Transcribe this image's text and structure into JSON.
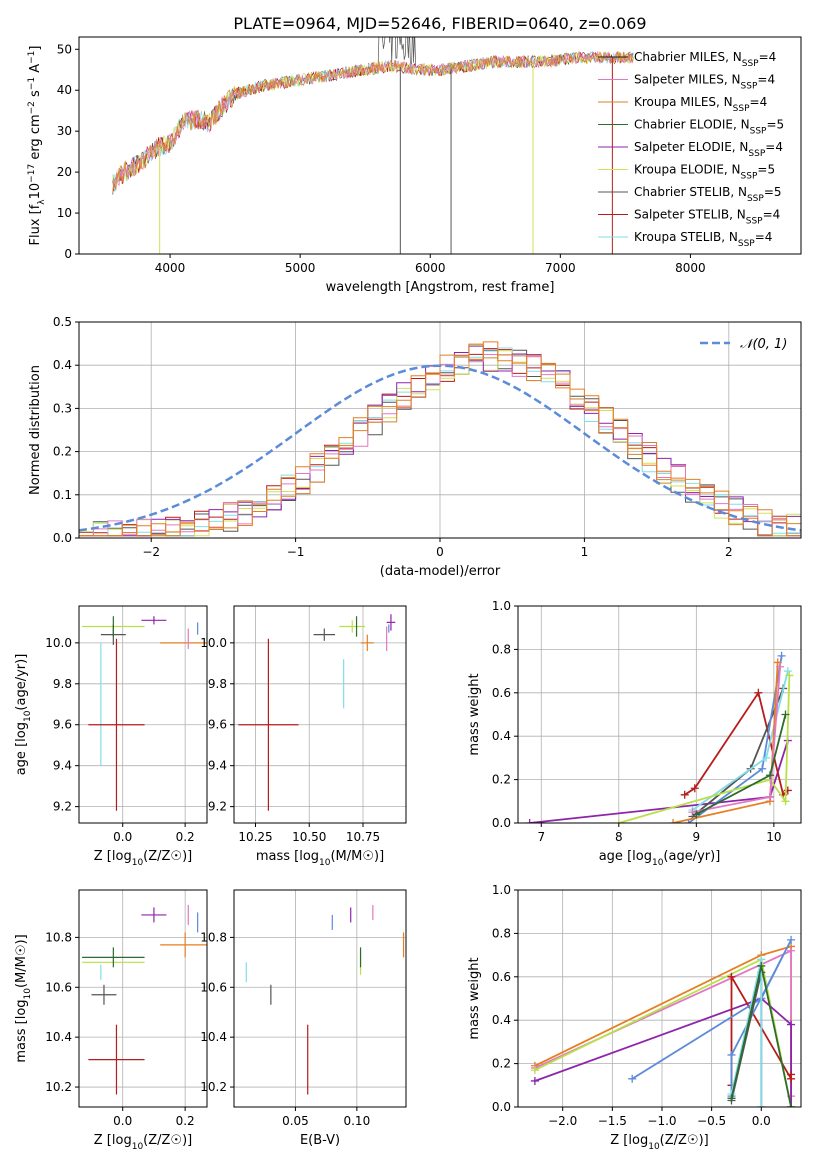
{
  "title": "PLATE=0964, MJD=52646, FIBERID=0640, z=0.069",
  "colors": {
    "chabrier_miles": "#1f1f1f",
    "salpeter_miles": "#e377c2",
    "kroupa_miles": "#d9822b",
    "chabrier_elodie": "#2f6b2f",
    "salpeter_elodie": "#8e24aa",
    "kroupa_elodie": "#d4e157",
    "chabrier_stelib": "#555555",
    "salpeter_stelib": "#b71c1c",
    "kroupa_stelib": "#80deea",
    "normal_curve": "#5b8bd9",
    "extra_blue": "#5b8bd9",
    "extra_orange": "#e67e22",
    "extra_lime": "#b8e04a"
  },
  "chart_data": [
    {
      "id": "spectrum",
      "type": "line",
      "xlabel": "wavelength [Angstrom, rest frame]",
      "ylabel": "Flux [f_λ10^-17 erg cm^-2 s^-1 A^-1]",
      "xlim": [
        3300,
        8850
      ],
      "ylim": [
        0,
        53
      ],
      "xticks": [
        "4000",
        "5000",
        "6000",
        "7000",
        "8000"
      ],
      "yticks": [
        "0",
        "10",
        "20",
        "30",
        "40",
        "50"
      ],
      "grid": false,
      "legend_position": "top-right",
      "legend": [
        {
          "name": "Chabrier MILES",
          "nssp": "4"
        },
        {
          "name": "Salpeter MILES",
          "nssp": "4"
        },
        {
          "name": "Kroupa MILES",
          "nssp": "4"
        },
        {
          "name": "Chabrier ELODIE",
          "nssp": "5"
        },
        {
          "name": "Salpeter ELODIE",
          "nssp": "4"
        },
        {
          "name": "Kroupa ELODIE",
          "nssp": "5"
        },
        {
          "name": "Chabrier STELIB",
          "nssp": "5"
        },
        {
          "name": "Salpeter STELIB",
          "nssp": "4"
        },
        {
          "name": "Kroupa STELIB",
          "nssp": "4"
        }
      ],
      "continuum_x": [
        3560,
        3650,
        3800,
        3900,
        4000,
        4100,
        4200,
        4300,
        4400,
        4500,
        4700,
        4900,
        5100,
        5300,
        5500,
        5700,
        5900,
        6100,
        6300,
        6500,
        6700,
        6900,
        7100,
        7300,
        7500
      ],
      "continuum_y": [
        17,
        20,
        23,
        26,
        27,
        32,
        33,
        32,
        36,
        39,
        41,
        42,
        43,
        44,
        45,
        46,
        45,
        45,
        46,
        47,
        47,
        47,
        48,
        48,
        48
      ],
      "drop_lines_x": [
        3920,
        5770,
        6160,
        6790,
        7400
      ]
    },
    {
      "id": "residuals",
      "type": "histogram",
      "xlabel": "(data-model)/error",
      "ylabel": "Normed distribution",
      "xlim": [
        -2.5,
        2.5
      ],
      "ylim": [
        0,
        0.5
      ],
      "xticks": [
        "−2",
        "−1",
        "0",
        "1",
        "2"
      ],
      "yticks": [
        "0.0",
        "0.1",
        "0.2",
        "0.3",
        "0.4",
        "0.5"
      ],
      "grid": true,
      "legend_position": "top-right",
      "normal_label": "𝒩(0, 1)",
      "bin_width": 0.1
    },
    {
      "id": "age_vs_Z",
      "type": "scatter",
      "xlabel": "Z [log10(Z/Z☉)]",
      "ylabel": "age  [log10(age/yr)]",
      "xlim": [
        -0.14,
        0.27
      ],
      "ylim": [
        9.12,
        10.18
      ],
      "xticks": [
        "0.0",
        "0.2"
      ],
      "yticks": [
        "9.2",
        "9.4",
        "9.6",
        "9.8",
        "10.0"
      ],
      "grid": true,
      "points": [
        {
          "x": -0.07,
          "y": 9.7,
          "xerr": 0.0,
          "yerr": 0.3,
          "c": "kroupa_stelib"
        },
        {
          "x": -0.03,
          "y": 10.08,
          "xerr": 0.1,
          "yerr": 0.0,
          "c": "extra_lime"
        },
        {
          "x": -0.03,
          "y": 10.04,
          "xerr": 0.04,
          "yerr": 0.05,
          "c": "chabrier_stelib"
        },
        {
          "x": -0.03,
          "y": 10.08,
          "xerr": 0.0,
          "yerr": 0.05,
          "c": "chabrier_elodie"
        },
        {
          "x": -0.02,
          "y": 9.6,
          "xerr": 0.09,
          "yerr": 0.42,
          "c": "salpeter_stelib"
        },
        {
          "x": 0.1,
          "y": 10.11,
          "xerr": 0.04,
          "yerr": 0.02,
          "c": "salpeter_elodie"
        },
        {
          "x": 0.2,
          "y": 10.0,
          "xerr": 0.08,
          "yerr": 0.0,
          "c": "extra_orange"
        },
        {
          "x": 0.21,
          "y": 10.02,
          "xerr": 0.0,
          "yerr": 0.05,
          "c": "salpeter_miles"
        },
        {
          "x": 0.24,
          "y": 10.07,
          "xerr": 0.0,
          "yerr": 0.03,
          "c": "extra_blue"
        }
      ]
    },
    {
      "id": "age_vs_mass",
      "type": "scatter",
      "xlabel": "mass [log10(M/M☉)]",
      "ylabel": "",
      "xlim": [
        10.15,
        10.95
      ],
      "ylim": [
        9.12,
        10.18
      ],
      "xticks": [
        "10.25",
        "10.50",
        "10.75"
      ],
      "yticks": [
        "9.2",
        "9.4",
        "9.6",
        "9.8",
        "10.0"
      ],
      "grid": true,
      "points": [
        {
          "x": 10.31,
          "y": 9.6,
          "xerr": 0.14,
          "yerr": 0.42,
          "c": "salpeter_stelib"
        },
        {
          "x": 10.57,
          "y": 10.04,
          "xerr": 0.05,
          "yerr": 0.03,
          "c": "chabrier_stelib"
        },
        {
          "x": 10.66,
          "y": 9.8,
          "xerr": 0.0,
          "yerr": 0.12,
          "c": "kroupa_stelib"
        },
        {
          "x": 10.7,
          "y": 10.08,
          "xerr": 0.06,
          "yerr": 0.03,
          "c": "extra_lime"
        },
        {
          "x": 10.72,
          "y": 10.08,
          "xerr": 0.0,
          "yerr": 0.05,
          "c": "chabrier_elodie"
        },
        {
          "x": 10.77,
          "y": 10.0,
          "xerr": 0.03,
          "yerr": 0.04,
          "c": "extra_orange"
        },
        {
          "x": 10.86,
          "y": 10.02,
          "xerr": 0.0,
          "yerr": 0.06,
          "c": "salpeter_miles"
        },
        {
          "x": 10.88,
          "y": 10.1,
          "xerr": 0.02,
          "yerr": 0.04,
          "c": "salpeter_elodie"
        },
        {
          "x": 10.87,
          "y": 10.07,
          "xerr": 0.0,
          "yerr": 0.02,
          "c": "extra_blue"
        }
      ]
    },
    {
      "id": "weight_vs_age",
      "type": "line",
      "xlabel": "age  [log10(age/yr)]",
      "ylabel": "mass weight",
      "xlim": [
        6.7,
        10.35
      ],
      "ylim": [
        0,
        1
      ],
      "xticks": [
        "7",
        "8",
        "9",
        "10"
      ],
      "yticks": [
        "0.0",
        "0.2",
        "0.4",
        "0.6",
        "0.8",
        "1.0"
      ],
      "grid": true,
      "series": [
        {
          "c": "salpeter_elodie",
          "x": [
            6.85,
            9.95,
            10.18
          ],
          "y": [
            0.0,
            0.12,
            0.38
          ]
        },
        {
          "c": "salpeter_stelib",
          "x": [
            8.85,
            8.98,
            9.8,
            10.12,
            10.18
          ],
          "y": [
            0.13,
            0.16,
            0.6,
            0.13,
            0.15
          ]
        },
        {
          "c": "chabrier_stelib",
          "x": [
            8.95,
            9.7,
            10.12
          ],
          "y": [
            0.03,
            0.25,
            0.62
          ]
        },
        {
          "c": "extra_blue",
          "x": [
            8.9,
            9.85,
            10.1
          ],
          "y": [
            0.0,
            0.25,
            0.77
          ]
        },
        {
          "c": "kroupa_stelib",
          "x": [
            8.95,
            9.9,
            10.18
          ],
          "y": [
            0.06,
            0.3,
            0.7
          ]
        },
        {
          "c": "extra_orange",
          "x": [
            8.7,
            9.95,
            10.05
          ],
          "y": [
            0.0,
            0.1,
            0.74
          ]
        },
        {
          "c": "extra_lime",
          "x": [
            8.0,
            9.95,
            10.15,
            10.2
          ],
          "y": [
            0.0,
            0.2,
            0.1,
            0.68
          ]
        },
        {
          "c": "salpeter_miles",
          "x": [
            8.95,
            9.95,
            10.08
          ],
          "y": [
            0.05,
            0.12,
            0.72
          ]
        },
        {
          "c": "chabrier_elodie",
          "x": [
            9.0,
            9.95,
            10.15
          ],
          "y": [
            0.04,
            0.22,
            0.5
          ]
        }
      ]
    },
    {
      "id": "mass_vs_Z",
      "type": "scatter",
      "xlabel": "Z [log10(Z/Z☉)]",
      "ylabel": "mass [log10(M/M☉)]",
      "xlim": [
        -0.14,
        0.27
      ],
      "ylim": [
        10.12,
        10.99
      ],
      "xticks": [
        "0.0",
        "0.2"
      ],
      "yticks": [
        "10.2",
        "10.4",
        "10.6",
        "10.8"
      ],
      "grid": true,
      "points": [
        {
          "x": -0.02,
          "y": 10.31,
          "xerr": 0.09,
          "yerr": 0.14,
          "c": "salpeter_stelib"
        },
        {
          "x": -0.06,
          "y": 10.57,
          "xerr": 0.04,
          "yerr": 0.04,
          "c": "chabrier_stelib"
        },
        {
          "x": -0.07,
          "y": 10.66,
          "xerr": 0.0,
          "yerr": 0.03,
          "c": "kroupa_stelib"
        },
        {
          "x": -0.03,
          "y": 10.7,
          "xerr": 0.1,
          "yerr": 0.0,
          "c": "extra_lime"
        },
        {
          "x": -0.03,
          "y": 10.72,
          "xerr": 0.1,
          "yerr": 0.04,
          "c": "chabrier_elodie"
        },
        {
          "x": 0.1,
          "y": 10.89,
          "xerr": 0.04,
          "yerr": 0.03,
          "c": "salpeter_elodie"
        },
        {
          "x": 0.2,
          "y": 10.77,
          "xerr": 0.08,
          "yerr": 0.05,
          "c": "extra_orange"
        },
        {
          "x": 0.21,
          "y": 10.89,
          "xerr": 0.0,
          "yerr": 0.04,
          "c": "salpeter_miles"
        },
        {
          "x": 0.24,
          "y": 10.86,
          "xerr": 0.0,
          "yerr": 0.04,
          "c": "extra_blue"
        }
      ]
    },
    {
      "id": "mass_vs_ebv",
      "type": "scatter",
      "xlabel": "E(B-V)",
      "ylabel": "",
      "xlim": [
        0.0,
        0.14
      ],
      "ylim": [
        10.12,
        10.99
      ],
      "xticks": [
        "0.05",
        "0.10"
      ],
      "yticks": [
        "10.2",
        "10.4",
        "10.6",
        "10.8"
      ],
      "grid": true,
      "points": [
        {
          "x": 0.01,
          "y": 10.66,
          "xerr": 0.0,
          "yerr": 0.04,
          "c": "kroupa_stelib"
        },
        {
          "x": 0.03,
          "y": 10.57,
          "xerr": 0.0,
          "yerr": 0.04,
          "c": "chabrier_stelib"
        },
        {
          "x": 0.06,
          "y": 10.31,
          "xerr": 0.0,
          "yerr": 0.14,
          "c": "salpeter_stelib"
        },
        {
          "x": 0.08,
          "y": 10.86,
          "xerr": 0.0,
          "yerr": 0.03,
          "c": "extra_blue"
        },
        {
          "x": 0.095,
          "y": 10.89,
          "xerr": 0.0,
          "yerr": 0.03,
          "c": "salpeter_elodie"
        },
        {
          "x": 0.103,
          "y": 10.7,
          "xerr": 0.0,
          "yerr": 0.05,
          "c": "extra_lime"
        },
        {
          "x": 0.103,
          "y": 10.72,
          "xerr": 0.0,
          "yerr": 0.04,
          "c": "chabrier_elodie"
        },
        {
          "x": 0.113,
          "y": 10.9,
          "xerr": 0.0,
          "yerr": 0.03,
          "c": "salpeter_miles"
        },
        {
          "x": 0.138,
          "y": 10.77,
          "xerr": 0.0,
          "yerr": 0.05,
          "c": "extra_orange"
        }
      ]
    },
    {
      "id": "weight_vs_Z",
      "type": "line",
      "xlabel": "Z [log10(Z/Z☉)]",
      "ylabel": "mass weight",
      "xlim": [
        -2.45,
        0.4
      ],
      "ylim": [
        0,
        1
      ],
      "xticks": [
        "−2.0",
        "−1.5",
        "−1.0",
        "−0.5",
        "0.0"
      ],
      "yticks": [
        "0.0",
        "0.2",
        "0.4",
        "0.6",
        "0.8",
        "1.0"
      ],
      "grid": true,
      "series": [
        {
          "c": "extra_orange",
          "x": [
            -2.28,
            0.0,
            0.3,
            0.3
          ],
          "y": [
            0.19,
            0.7,
            0.74,
            0.0
          ]
        },
        {
          "c": "salpeter_miles",
          "x": [
            -2.28,
            0.3,
            0.3
          ],
          "y": [
            0.18,
            0.72,
            0.05
          ]
        },
        {
          "c": "extra_lime",
          "x": [
            -2.28,
            0.0,
            0.3
          ],
          "y": [
            0.17,
            0.68,
            0.0
          ]
        },
        {
          "c": "salpeter_elodie",
          "x": [
            -2.28,
            0.0,
            0.3,
            0.3
          ],
          "y": [
            0.12,
            0.5,
            0.38,
            0.0
          ]
        },
        {
          "c": "salpeter_stelib",
          "x": [
            -0.3,
            -0.3,
            0.3,
            0.3
          ],
          "y": [
            0.1,
            0.6,
            0.13,
            0.15
          ]
        },
        {
          "c": "extra_blue",
          "x": [
            -1.3,
            0.0,
            0.3,
            -0.3,
            -0.3
          ],
          "y": [
            0.13,
            0.5,
            0.77,
            0.24,
            0.05
          ]
        },
        {
          "c": "chabrier_stelib",
          "x": [
            -0.3,
            0.0,
            0.0
          ],
          "y": [
            0.03,
            0.62,
            0.0
          ]
        },
        {
          "c": "kroupa_stelib",
          "x": [
            -0.3,
            0.0,
            0.0
          ],
          "y": [
            0.06,
            0.68,
            0.0
          ]
        },
        {
          "c": "chabrier_elodie",
          "x": [
            -0.3,
            0.0,
            0.3
          ],
          "y": [
            0.04,
            0.65,
            0.0
          ]
        }
      ]
    }
  ]
}
